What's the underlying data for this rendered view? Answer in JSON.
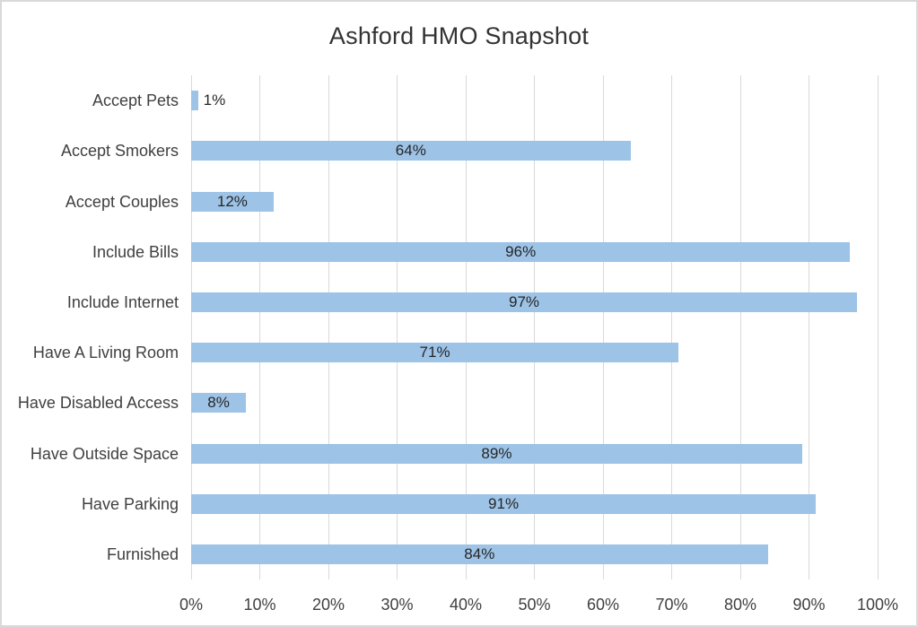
{
  "window": {
    "background": "#FFFFFF",
    "border_color": "#D9D9D9"
  },
  "chart_data": {
    "type": "bar",
    "orientation": "horizontal",
    "title": "Ashford HMO Snapshot",
    "categories": [
      "Accept Pets",
      "Accept Smokers",
      "Accept Couples",
      "Include Bills",
      "Include Internet",
      "Have A Living Room",
      "Have Disabled Access",
      "Have Outside Space",
      "Have Parking",
      "Furnished"
    ],
    "values": [
      1,
      64,
      12,
      96,
      97,
      71,
      8,
      89,
      91,
      84
    ],
    "data_labels": [
      "1%",
      "64%",
      "12%",
      "96%",
      "97%",
      "71%",
      "8%",
      "89%",
      "91%",
      "84%"
    ],
    "x_tick_labels": [
      "0%",
      "10%",
      "20%",
      "30%",
      "40%",
      "50%",
      "60%",
      "70%",
      "80%",
      "90%",
      "100%"
    ],
    "xlim": [
      0,
      100
    ],
    "x_tick_step": 10,
    "grid": true,
    "legend": "none",
    "data_label_position": "center",
    "colors": {
      "bar": "#9DC3E6",
      "gridline": "#D9D9D9",
      "title_text": "#333333",
      "axis_text": "#404040",
      "data_label_text": "#262626"
    }
  }
}
